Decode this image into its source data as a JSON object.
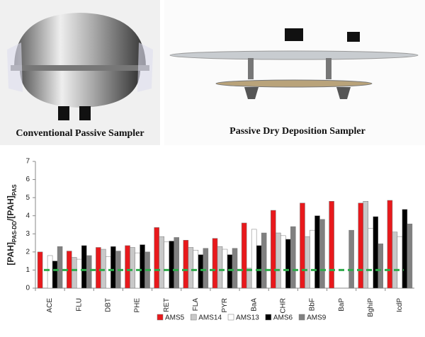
{
  "photos": {
    "left_caption": "Conventional Passive Sampler",
    "right_caption": "Passive Dry Deposition Sampler"
  },
  "chart_data": {
    "type": "bar",
    "ylabel_parts": [
      "[PAH]",
      "PAS-DD",
      "/[PAH]",
      "PAS"
    ],
    "categories": [
      "ACE",
      "FLU",
      "DBT",
      "PHE",
      "RET",
      "FLA",
      "PYR",
      "BaA",
      "CHR",
      "BbF",
      "BaP",
      "BghiP",
      "IcdP"
    ],
    "series": [
      {
        "name": "AMS5",
        "color": "#e8191c",
        "values": [
          2.0,
          2.05,
          2.25,
          2.35,
          3.35,
          2.65,
          2.75,
          3.6,
          4.3,
          4.7,
          4.8,
          4.7,
          4.85
        ]
      },
      {
        "name": "AMS14",
        "color": "#c8c8c8",
        "values": [
          null,
          1.7,
          2.15,
          2.25,
          2.85,
          2.25,
          2.3,
          1.1,
          3.05,
          2.85,
          null,
          4.8,
          3.1
        ]
      },
      {
        "name": "AMS13",
        "color": "#ffffff",
        "values": [
          1.8,
          1.6,
          1.75,
          1.95,
          2.55,
          2.1,
          2.15,
          3.25,
          2.9,
          3.2,
          null,
          3.3,
          2.85
        ]
      },
      {
        "name": "AMS6",
        "color": "#000000",
        "values": [
          1.5,
          2.35,
          2.3,
          2.4,
          2.6,
          1.85,
          1.85,
          2.35,
          2.7,
          4.0,
          null,
          3.95,
          4.35
        ]
      },
      {
        "name": "AMS9",
        "color": "#808080",
        "values": [
          2.3,
          1.8,
          2.05,
          2.0,
          2.8,
          2.2,
          2.2,
          3.05,
          3.4,
          3.8,
          3.2,
          2.45,
          3.55
        ]
      }
    ],
    "reference_line": 1,
    "reference_color": "#2eaa4a",
    "ylim": [
      0,
      7
    ],
    "yticks": [
      0,
      1,
      2,
      3,
      4,
      5,
      6,
      7
    ]
  }
}
